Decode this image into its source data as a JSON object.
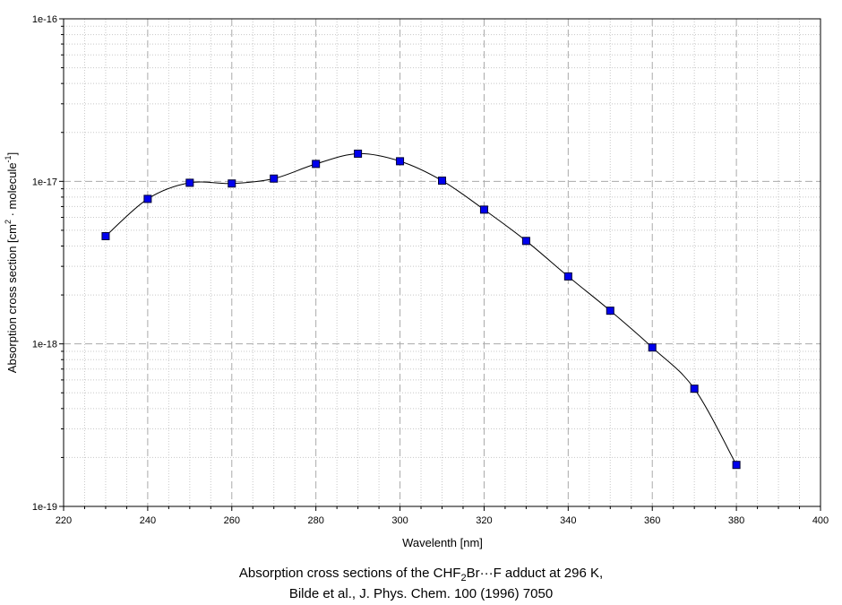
{
  "chart_data": {
    "type": "scatter",
    "x": [
      230,
      240,
      250,
      260,
      270,
      280,
      290,
      300,
      310,
      320,
      330,
      340,
      350,
      360,
      370,
      380
    ],
    "y": [
      4.6e-18,
      7.8e-18,
      9.8e-18,
      9.7e-18,
      1.04e-17,
      1.28e-17,
      1.48e-17,
      1.33e-17,
      1.01e-17,
      6.7e-18,
      4.3e-18,
      2.6e-18,
      1.6e-18,
      9.5e-19,
      5.3e-19,
      1.8e-19
    ],
    "xlabel": "Wavelenth [nm]",
    "ylabel": {
      "pre": "Absorption cross section [cm",
      "sup1": "2",
      "mid": " · molecule",
      "sup2": "-1",
      "post": "]"
    },
    "xlim": [
      220,
      400
    ],
    "ylim": [
      1e-19,
      1e-16
    ],
    "yscale": "log",
    "xticks": [
      "220",
      "240",
      "260",
      "280",
      "300",
      "320",
      "340",
      "360",
      "380",
      "400"
    ],
    "yticks": [
      "1e-19",
      "1e-18",
      "1e-17",
      "1e-16"
    ],
    "grid": true,
    "marker_color": "#0000ee",
    "line_color": "#000000"
  },
  "caption": {
    "line1_pre": "Absorption cross sections of the CHF",
    "line1_sub": "2",
    "line1_post": "Br···F adduct at 296 K,",
    "line2": "Bilde et al., J. Phys. Chem. 100 (1996) 7050"
  }
}
